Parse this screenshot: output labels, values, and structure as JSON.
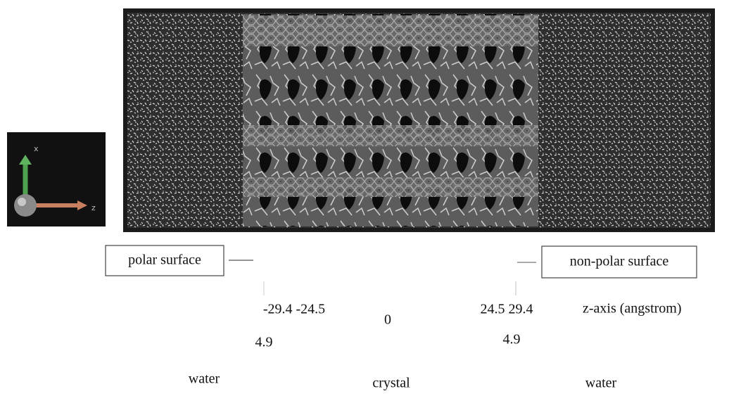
{
  "figure": {
    "axes_icon": {
      "x_label": "x",
      "z_label": "z"
    },
    "callouts": {
      "left": "polar surface",
      "right": "non-polar surface"
    },
    "positions": {
      "left": "-29.4 -24.5",
      "center": "0",
      "right": "24.5 29.4",
      "axis_label": "z-axis (angstrom)"
    },
    "spacings": {
      "left": "4.9",
      "right": "4.9"
    },
    "regions": {
      "left": "water",
      "center": "crystal",
      "right": "water"
    }
  }
}
